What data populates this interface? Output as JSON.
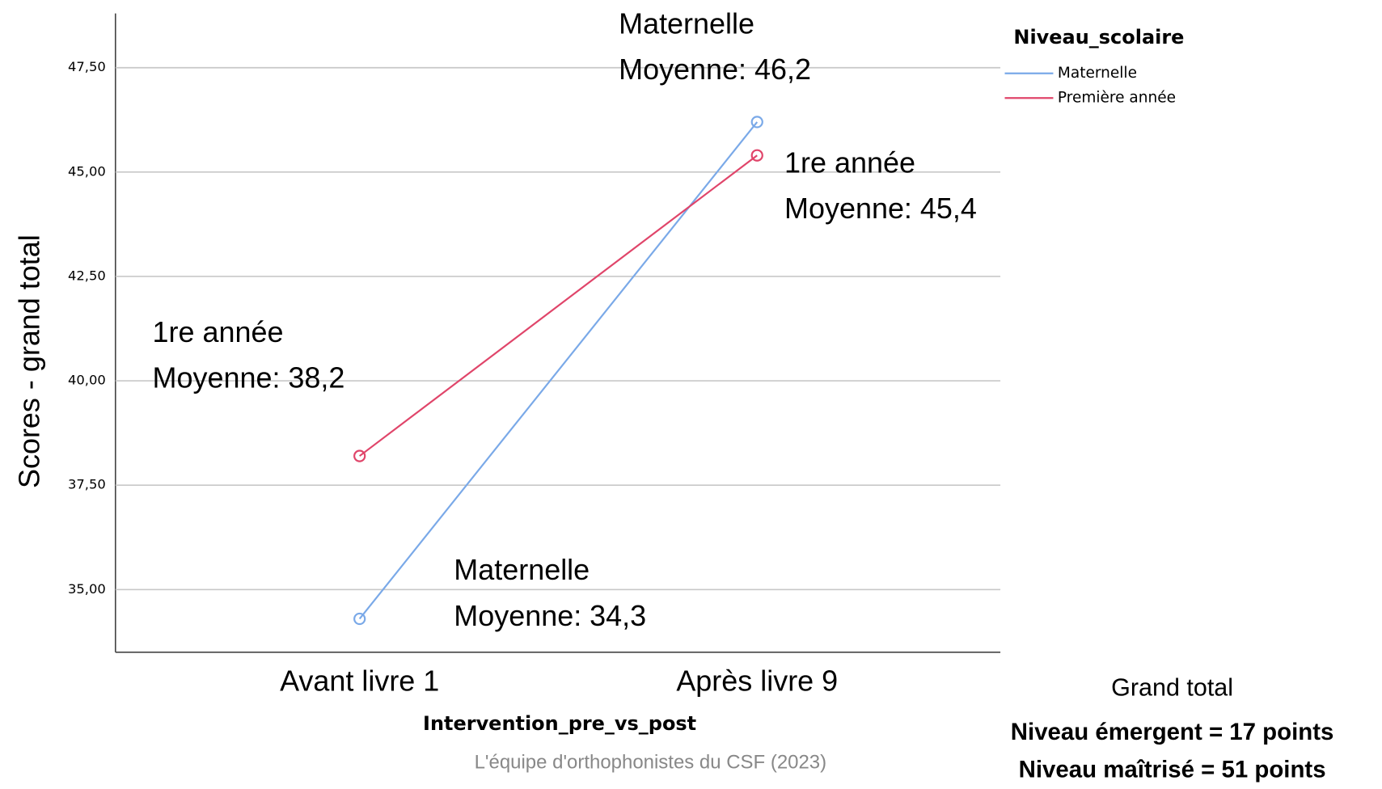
{
  "chart_data": {
    "type": "line",
    "y_label": "Scores - grand total",
    "x_label": "Intervention_pre_vs_post",
    "categories": [
      "Avant livre 1",
      "Après livre 9"
    ],
    "series": [
      {
        "name": "Maternelle",
        "color": "#7aa9e8",
        "values": [
          34.3,
          46.2
        ]
      },
      {
        "name": "Première année",
        "color": "#e0456a",
        "values": [
          38.2,
          45.4
        ]
      }
    ],
    "ylim": [
      33.5,
      48.8
    ],
    "yticks": [
      {
        "value": 35,
        "label": "35,00"
      },
      {
        "value": 37.5,
        "label": "37,50"
      },
      {
        "value": 40,
        "label": "40,00"
      },
      {
        "value": 42.5,
        "label": "42,50"
      },
      {
        "value": 45,
        "label": "45,00"
      },
      {
        "value": 47.5,
        "label": "47,50"
      }
    ],
    "grid": true,
    "legend_title": "Niveau_scolaire",
    "legend": "top-right",
    "annotations": [
      [
        "Maternelle",
        "Moyenne: 46,2"
      ],
      [
        "1re année",
        "Moyenne: 45,4"
      ],
      [
        "1re année",
        "Moyenne: 38,2"
      ],
      [
        "Maternelle",
        "Moyenne: 34,3"
      ]
    ],
    "credit": "L'équipe d'orthophonistes du CSF (2023)",
    "note": [
      "Grand total",
      "Niveau émergent = 17 points",
      "Niveau maîtrisé = 51 points"
    ]
  }
}
